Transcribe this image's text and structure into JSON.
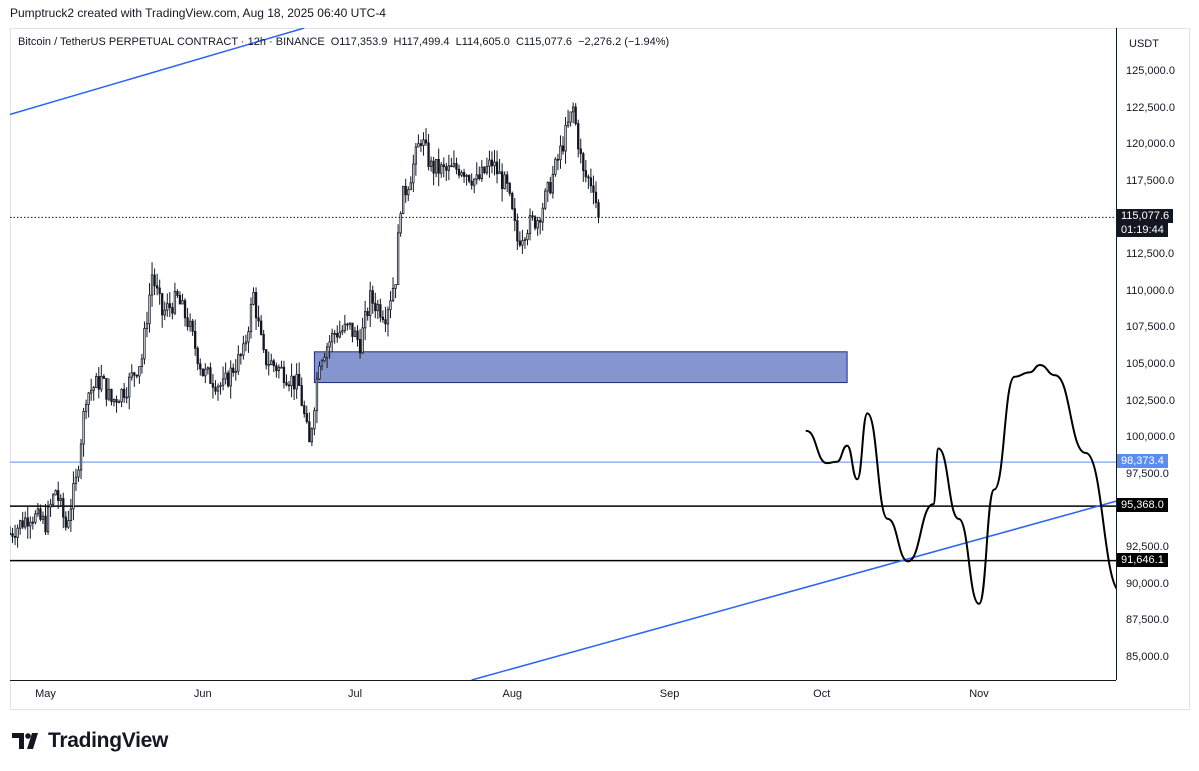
{
  "header": {
    "credit": "Pumptruck2 created with TradingView.com, Aug 18, 2025 06:40 UTC-4"
  },
  "legend": {
    "symbol": "Bitcoin / TetherUS PERPETUAL CONTRACT · 12h · BINANCE",
    "open": "O117,353.9",
    "high": "H117,499.4",
    "low": "L114,605.0",
    "close": "C115,077.6",
    "change": "−2,276.2 (−1.94%)"
  },
  "price_axis": {
    "unit": "USDT",
    "ticks": [
      "125,000.0",
      "122,500.0",
      "120,000.0",
      "117,500.0",
      "112,500.0",
      "110,000.0",
      "107,500.0",
      "105,000.0",
      "102,500.0",
      "100,000.0",
      "97,500.0",
      "92,500.0",
      "90,000.0",
      "87,500.0",
      "85,000.0"
    ],
    "last_price": "115,077.6",
    "countdown": "01:19:44",
    "levels": [
      "98,373.4",
      "95,368.0",
      "91,646.1"
    ]
  },
  "time_axis": {
    "ticks": [
      "May",
      "Jun",
      "Jul",
      "Aug",
      "Sep",
      "Oct",
      "Nov"
    ]
  },
  "footer": {
    "brand": "TradingView"
  },
  "colors": {
    "up": "#131722",
    "down": "#131722",
    "trendline": "#2962ff",
    "zone_fill": "#8595cf",
    "zone_border": "#1e2a78",
    "level_line": "#000000",
    "light_level": "#5b8def",
    "projection": "#000000"
  },
  "chart_data": {
    "type": "candlestick",
    "title": "Bitcoin / TetherUS PERPETUAL CONTRACT · 12h · BINANCE",
    "interval": "12h",
    "ylabel": "USDT",
    "ylim": [
      83500,
      128000
    ],
    "x_range": [
      "2025-04-24",
      "2025-11-28"
    ],
    "last_price": 115077.6,
    "close_path": [
      [
        "2025-04-24",
        93500
      ],
      [
        "2025-04-28",
        94800
      ],
      [
        "2025-05-01",
        94200
      ],
      [
        "2025-05-03",
        96500
      ],
      [
        "2025-05-05",
        94000
      ],
      [
        "2025-05-07",
        97000
      ],
      [
        "2025-05-09",
        103000
      ],
      [
        "2025-05-12",
        104000
      ],
      [
        "2025-05-14",
        102500
      ],
      [
        "2025-05-17",
        103500
      ],
      [
        "2025-05-20",
        105500
      ],
      [
        "2025-05-22",
        111200
      ],
      [
        "2025-05-24",
        108500
      ],
      [
        "2025-05-27",
        109500
      ],
      [
        "2025-05-29",
        108000
      ],
      [
        "2025-06-01",
        104500
      ],
      [
        "2025-06-05",
        103500
      ],
      [
        "2025-06-07",
        104800
      ],
      [
        "2025-06-09",
        105800
      ],
      [
        "2025-06-11",
        109800
      ],
      [
        "2025-06-13",
        105500
      ],
      [
        "2025-06-17",
        104500
      ],
      [
        "2025-06-20",
        103500
      ],
      [
        "2025-06-22",
        99500
      ],
      [
        "2025-06-24",
        105500
      ],
      [
        "2025-06-27",
        107200
      ],
      [
        "2025-06-30",
        107500
      ],
      [
        "2025-07-02",
        106500
      ],
      [
        "2025-07-04",
        109500
      ],
      [
        "2025-07-07",
        108500
      ],
      [
        "2025-07-09",
        111000
      ],
      [
        "2025-07-10",
        116000
      ],
      [
        "2025-07-12",
        118000
      ],
      [
        "2025-07-14",
        120500
      ],
      [
        "2025-07-16",
        118500
      ],
      [
        "2025-07-19",
        118200
      ],
      [
        "2025-07-22",
        118500
      ],
      [
        "2025-07-25",
        117500
      ],
      [
        "2025-07-28",
        118800
      ],
      [
        "2025-07-31",
        117000
      ],
      [
        "2025-08-02",
        113500
      ],
      [
        "2025-08-04",
        114500
      ],
      [
        "2025-08-06",
        115000
      ],
      [
        "2025-08-08",
        116800
      ],
      [
        "2025-08-10",
        119000
      ],
      [
        "2025-08-13",
        122500
      ],
      [
        "2025-08-15",
        118000
      ],
      [
        "2025-08-17",
        117353.9
      ],
      [
        "2025-08-18",
        115077.6
      ]
    ],
    "levels": [
      {
        "price": 98373.4,
        "color": "#5b8def"
      },
      {
        "price": 95368.0,
        "color": "#000000"
      },
      {
        "price": 91646.1,
        "color": "#000000"
      }
    ],
    "zone": {
      "x": [
        "2025-06-23",
        "2025-10-06"
      ],
      "y": [
        103800,
        105900
      ]
    },
    "trendlines": [
      {
        "from": [
          "2025-04-24",
          122100
        ],
        "to": [
          "2025-06-21",
          128000
        ]
      },
      {
        "from": [
          "2025-07-24",
          83500
        ],
        "to": [
          "2025-11-29",
          95800
        ]
      }
    ],
    "projection": [
      [
        "2025-09-28",
        100500
      ],
      [
        "2025-10-02",
        98300
      ],
      [
        "2025-10-04",
        98400
      ],
      [
        "2025-10-06",
        99500
      ],
      [
        "2025-10-08",
        97200
      ],
      [
        "2025-10-10",
        101700
      ],
      [
        "2025-10-14",
        94500
      ],
      [
        "2025-10-18",
        91600
      ],
      [
        "2025-10-23",
        95500
      ],
      [
        "2025-10-24",
        99300
      ],
      [
        "2025-10-28",
        94500
      ],
      [
        "2025-11-01",
        88700
      ],
      [
        "2025-11-04",
        96500
      ],
      [
        "2025-11-08",
        104200
      ],
      [
        "2025-11-11",
        104500
      ],
      [
        "2025-11-13",
        105000
      ],
      [
        "2025-11-16",
        104300
      ],
      [
        "2025-11-22",
        99000
      ],
      [
        "2025-11-29",
        89500
      ]
    ]
  }
}
